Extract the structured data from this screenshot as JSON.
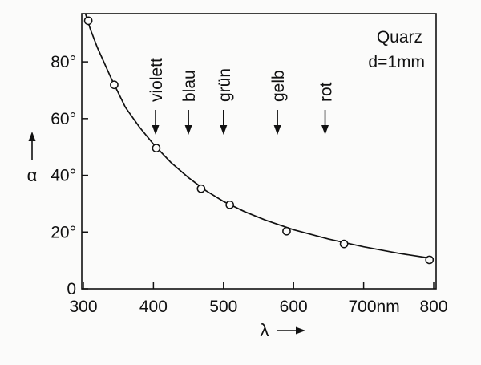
{
  "chart_data": {
    "type": "scatter",
    "title": "",
    "xlabel": "λ",
    "ylabel": "α",
    "xlim": [
      300,
      800
    ],
    "ylim": [
      0,
      97
    ],
    "x_ticks": [
      {
        "value": 300,
        "label": "300"
      },
      {
        "value": 400,
        "label": "400"
      },
      {
        "value": 500,
        "label": "500"
      },
      {
        "value": 600,
        "label": "600"
      },
      {
        "value": 700,
        "label": "700nm"
      },
      {
        "value": 800,
        "label": "800"
      }
    ],
    "y_ticks": [
      {
        "value": 0,
        "label": "0"
      },
      {
        "value": 20,
        "label": "20°"
      },
      {
        "value": 40,
        "label": "40°"
      },
      {
        "value": 60,
        "label": "60°"
      },
      {
        "value": 80,
        "label": "80°"
      }
    ],
    "series": [
      {
        "x": [
          307,
          344,
          404,
          468,
          509,
          590,
          672,
          794
        ],
        "y": [
          94.5,
          71.9,
          49.6,
          35.3,
          29.6,
          20.3,
          15.8,
          10.2
        ]
      }
    ],
    "fit_curve": {
      "x": [
        303,
        310,
        320,
        340,
        360,
        380,
        400,
        425,
        450,
        475,
        500,
        530,
        560,
        600,
        650,
        700,
        750,
        800
      ],
      "y": [
        97,
        91.5,
        85,
        74,
        64,
        57,
        51,
        44.5,
        39.2,
        34.6,
        30.8,
        27.2,
        24.2,
        20.8,
        17.5,
        14.8,
        12.5,
        10.6
      ]
    },
    "annotations": {
      "material": "Quarz",
      "thickness": "d=1mm"
    },
    "wavelength_markers": [
      {
        "label": "violett",
        "x": 403
      },
      {
        "label": "blau",
        "x": 450
      },
      {
        "label": "grün",
        "x": 500
      },
      {
        "label": "gelb",
        "x": 577
      },
      {
        "label": "rot",
        "x": 645
      }
    ],
    "grid": false,
    "legend": "none"
  }
}
